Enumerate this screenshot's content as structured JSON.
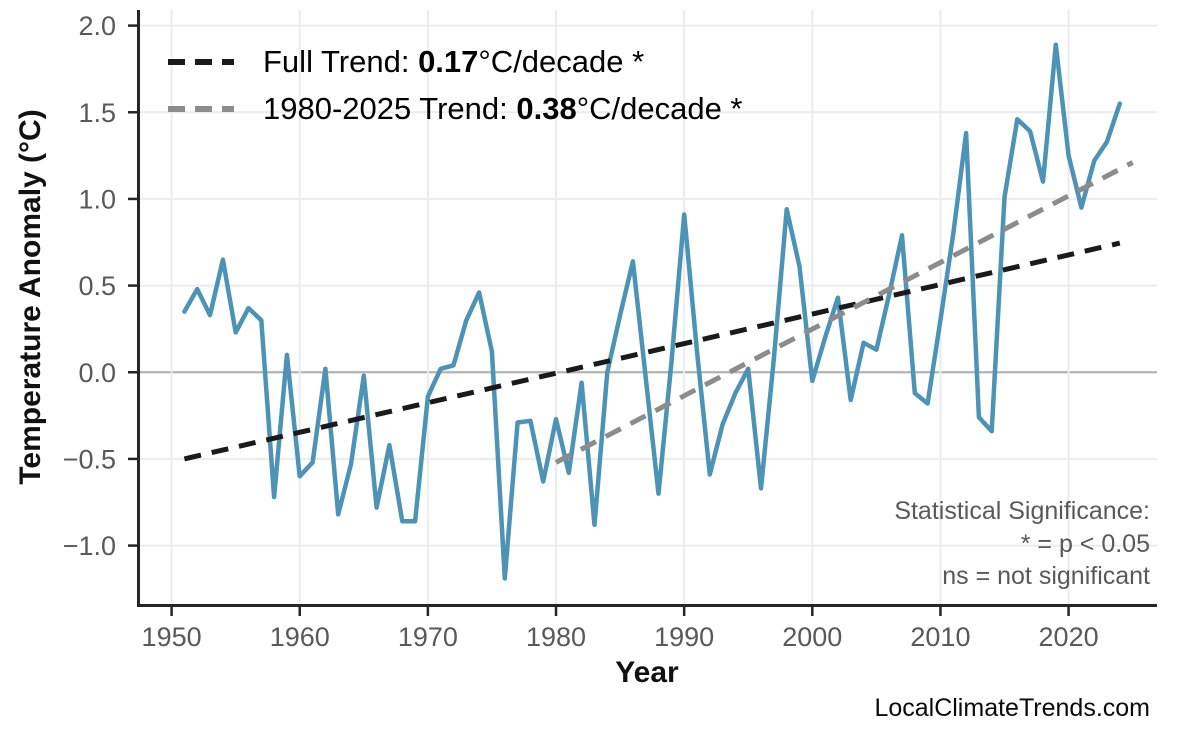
{
  "figure": {
    "title": "",
    "y_axis_label": "Temperature Anomaly (°C)",
    "x_axis_label": "Year",
    "watermark": "LocalClimateTrends.com"
  },
  "legend": {
    "position": "upper-left",
    "items": [
      {
        "name": "full-trend",
        "prefix": "Full Trend: ",
        "value": "0.17",
        "suffix": "°C/decade *",
        "color": "#1a1a1a"
      },
      {
        "name": "recent-trend",
        "prefix": "1980-2025 Trend: ",
        "value": "0.38",
        "suffix": "°C/decade *",
        "color": "#8c8c8c"
      }
    ]
  },
  "annotations": {
    "significance": [
      "Statistical Significance:",
      "* = p < 0.05",
      "ns = not significant"
    ]
  },
  "colors": {
    "line": "#4c93b6",
    "trend_full": "#1a1a1a",
    "trend_recent": "#8c8c8c",
    "grid": "#ececec",
    "zero_line": "#b3b3b3",
    "spine": "#262626",
    "tick_label": "#595959",
    "annotation": "#595959"
  },
  "chart_data": {
    "type": "line",
    "title": "",
    "xlabel": "Year",
    "ylabel": "Temperature Anomaly (°C)",
    "grid": true,
    "legend_position": "upper-left",
    "x_domain": [
      1947.3,
      2026.9
    ],
    "y_domain": [
      -1.337,
      2.09
    ],
    "x_ticks": [
      {
        "v": 1950,
        "label": "1950"
      },
      {
        "v": 1960,
        "label": "1960"
      },
      {
        "v": 1970,
        "label": "1970"
      },
      {
        "v": 1980,
        "label": "1980"
      },
      {
        "v": 1990,
        "label": "1990"
      },
      {
        "v": 2000,
        "label": "2000"
      },
      {
        "v": 2010,
        "label": "2010"
      },
      {
        "v": 2020,
        "label": "2020"
      }
    ],
    "y_ticks": [
      {
        "v": -1.0,
        "label": "−1.0"
      },
      {
        "v": -0.5,
        "label": "−0.5"
      },
      {
        "v": 0.0,
        "label": "0.0"
      },
      {
        "v": 0.5,
        "label": "0.5"
      },
      {
        "v": 1.0,
        "label": "1.0"
      },
      {
        "v": 1.5,
        "label": "1.5"
      },
      {
        "v": 2.0,
        "label": "2.0"
      }
    ],
    "series": [
      {
        "name": "annual-temperature-anomaly",
        "style": "solid",
        "color_key": "line",
        "x": [
          1951,
          1952,
          1953,
          1954,
          1955,
          1956,
          1957,
          1958,
          1959,
          1960,
          1961,
          1962,
          1963,
          1964,
          1965,
          1966,
          1967,
          1968,
          1969,
          1970,
          1971,
          1972,
          1973,
          1974,
          1975,
          1976,
          1977,
          1978,
          1979,
          1980,
          1981,
          1982,
          1983,
          1984,
          1985,
          1986,
          1987,
          1988,
          1989,
          1990,
          1991,
          1992,
          1993,
          1994,
          1995,
          1996,
          1997,
          1998,
          1999,
          2000,
          2001,
          2002,
          2003,
          2004,
          2005,
          2006,
          2007,
          2008,
          2009,
          2010,
          2011,
          2012,
          2013,
          2014,
          2015,
          2016,
          2017,
          2018,
          2019,
          2020,
          2021,
          2022,
          2023,
          2024
        ],
        "values": [
          0.35,
          0.48,
          0.33,
          0.65,
          0.23,
          0.37,
          0.3,
          -0.72,
          0.1,
          -0.6,
          -0.52,
          0.02,
          -0.82,
          -0.53,
          -0.02,
          -0.78,
          -0.42,
          -0.86,
          -0.86,
          -0.14,
          0.02,
          0.04,
          0.3,
          0.46,
          0.12,
          -1.19,
          -0.29,
          -0.28,
          -0.63,
          -0.27,
          -0.58,
          -0.06,
          -0.88,
          0.0,
          0.33,
          0.64,
          -0.03,
          -0.7,
          0.05,
          0.91,
          0.12,
          -0.59,
          -0.3,
          -0.12,
          0.02,
          -0.67,
          0.08,
          0.94,
          0.61,
          -0.05,
          0.2,
          0.43,
          -0.16,
          0.17,
          0.13,
          0.45,
          0.79,
          -0.12,
          -0.18,
          0.3,
          0.8,
          1.38,
          -0.26,
          -0.34,
          1.01,
          1.46,
          1.39,
          1.1,
          1.89,
          1.25,
          0.95,
          1.22,
          1.33,
          1.55
        ]
      },
      {
        "name": "full-trend-line",
        "style": "dashed",
        "color_key": "trend_full",
        "label": "Full Trend: 0.17°C/decade *",
        "slope_per_decade": 0.17,
        "x": [
          1951,
          2024
        ],
        "values": [
          -0.5,
          0.745
        ]
      },
      {
        "name": "recent-trend-line",
        "style": "dashed",
        "color_key": "trend_recent",
        "label": "1980-2025 Trend: 0.38°C/decade *",
        "slope_per_decade": 0.38,
        "x": [
          1980,
          2025
        ],
        "values": [
          -0.52,
          1.21
        ]
      }
    ]
  }
}
